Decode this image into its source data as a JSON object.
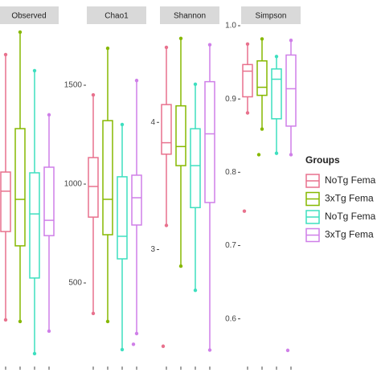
{
  "chart_data": {
    "type": "box",
    "legend_title": "Groups",
    "series": [
      {
        "name": "NoTg Fema",
        "color": "#e8718d"
      },
      {
        "name": "3xTg Fema",
        "color": "#86b800"
      },
      {
        "name": "NoTg Fema",
        "color": "#3ddfbf"
      },
      {
        "name": "3xTg Fema",
        "color": "#cf7fe8"
      }
    ],
    "facets": [
      {
        "title": "Observed",
        "ylim": [
          100,
          1400
        ],
        "yticks": [],
        "boxes": [
          {
            "min": 248,
            "q1": 594,
            "median": 752,
            "q3": 827,
            "max": 1287,
            "outliers": []
          },
          {
            "min": 242,
            "q1": 538,
            "median": 720,
            "q3": 997,
            "max": 1375,
            "outliers": []
          },
          {
            "min": 116,
            "q1": 412,
            "median": 663,
            "q3": 824,
            "max": 1224,
            "outliers": []
          },
          {
            "min": 204,
            "q1": 578,
            "median": 638,
            "q3": 846,
            "max": 1051,
            "outliers": []
          }
        ]
      },
      {
        "title": "Chao1",
        "ylim": [
          122,
          1801
        ],
        "yticks": [
          500,
          1000,
          1500
        ],
        "boxes": [
          {
            "min": 346,
            "q1": 833,
            "median": 988,
            "q3": 1134,
            "max": 1451,
            "outliers": []
          },
          {
            "min": 305,
            "q1": 744,
            "median": 923,
            "q3": 1321,
            "max": 1687,
            "outliers": []
          },
          {
            "min": 163,
            "q1": 622,
            "median": 736,
            "q3": 1037,
            "max": 1301,
            "outliers": []
          },
          {
            "min": 244,
            "q1": 793,
            "median": 931,
            "q3": 1045,
            "max": 1524,
            "outliers": [
              190
            ]
          }
        ]
      },
      {
        "title": "Shannon",
        "ylim": [
          2.15,
          4.76
        ],
        "yticks": [
          3,
          4
        ],
        "boxes": [
          {
            "min": 3.19,
            "q1": 3.75,
            "median": 3.84,
            "q3": 4.14,
            "max": 4.59,
            "outliers": [
              2.24
            ]
          },
          {
            "min": 2.87,
            "q1": 3.66,
            "median": 3.81,
            "q3": 4.13,
            "max": 4.66,
            "outliers": []
          },
          {
            "min": 2.68,
            "q1": 3.33,
            "median": 3.66,
            "q3": 3.95,
            "max": 4.3,
            "outliers": []
          },
          {
            "min": 2.21,
            "q1": 3.37,
            "median": 3.91,
            "q3": 4.32,
            "max": 4.61,
            "outliers": []
          }
        ]
      },
      {
        "title": "Simpson",
        "ylim": [
          0.547,
          1.0
        ],
        "yticks": [
          0.6,
          0.7,
          0.8,
          0.9,
          {
            "value": 1.0,
            "label": "1.0"
          }
        ],
        "boxes": [
          {
            "min": 0.881,
            "q1": 0.903,
            "median": 0.938,
            "q3": 0.947,
            "max": 0.975,
            "outliers": [
              0.747
            ]
          },
          {
            "min": 0.859,
            "q1": 0.905,
            "median": 0.916,
            "q3": 0.952,
            "max": 0.982,
            "outliers": [
              0.824
            ]
          },
          {
            "min": 0.826,
            "q1": 0.873,
            "median": 0.927,
            "q3": 0.941,
            "max": 0.958,
            "outliers": []
          },
          {
            "min": 0.824,
            "q1": 0.863,
            "median": 0.914,
            "q3": 0.96,
            "max": 0.98,
            "outliers": [
              0.557
            ]
          }
        ]
      }
    ]
  }
}
